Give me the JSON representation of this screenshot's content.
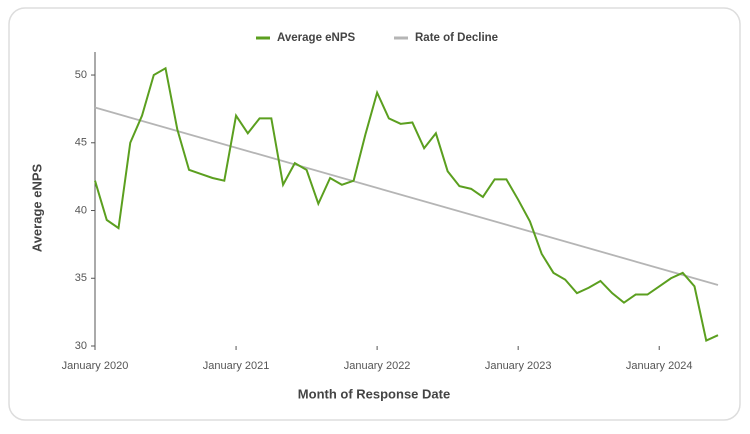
{
  "chart_data": {
    "type": "line",
    "xlabel": "Month of Response Date",
    "ylabel": "Average eNPS",
    "legend": "top",
    "ylim": [
      30,
      51.7
    ],
    "yticks": [
      30,
      35,
      40,
      45,
      50
    ],
    "xlim": [
      "2020-01",
      "2024-06"
    ],
    "xticks": [
      {
        "value": "2020-01",
        "label": "January 2020"
      },
      {
        "value": "2021-01",
        "label": "January 2021"
      },
      {
        "value": "2022-01",
        "label": "January 2022"
      },
      {
        "value": "2023-01",
        "label": "January 2023"
      },
      {
        "value": "2024-01",
        "label": "January 2024"
      }
    ],
    "series": [
      {
        "name": "Average eNPS",
        "color": "#5b9f1f",
        "x": [
          "2020-01",
          "2020-02",
          "2020-03",
          "2020-04",
          "2020-05",
          "2020-06",
          "2020-07",
          "2020-08",
          "2020-09",
          "2020-10",
          "2020-11",
          "2020-12",
          "2021-01",
          "2021-02",
          "2021-03",
          "2021-04",
          "2021-05",
          "2021-06",
          "2021-07",
          "2021-08",
          "2021-09",
          "2021-10",
          "2021-11",
          "2021-12",
          "2022-01",
          "2022-02",
          "2022-03",
          "2022-04",
          "2022-05",
          "2022-06",
          "2022-07",
          "2022-08",
          "2022-09",
          "2022-10",
          "2022-11",
          "2022-12",
          "2023-01",
          "2023-02",
          "2023-03",
          "2023-04",
          "2023-05",
          "2023-06",
          "2023-07",
          "2023-08",
          "2023-09",
          "2023-10",
          "2023-11",
          "2023-12",
          "2024-01",
          "2024-02",
          "2024-03",
          "2024-04",
          "2024-05",
          "2024-06"
        ],
        "values": [
          42.2,
          39.3,
          38.7,
          45,
          47,
          50,
          50.5,
          46,
          43,
          42.7,
          42.4,
          42.2,
          47,
          45.7,
          46.8,
          46.8,
          41.9,
          43.5,
          43,
          40.5,
          42.4,
          41.9,
          42.2,
          45.6,
          48.7,
          46.8,
          46.4,
          46.5,
          44.6,
          45.7,
          42.9,
          41.8,
          41.6,
          41,
          42.3,
          42.3,
          40.8,
          39.2,
          36.8,
          35.4,
          34.9,
          33.9,
          34.3,
          34.8,
          33.9,
          33.2,
          33.8,
          33.8,
          34.4,
          35,
          35.4,
          34.4,
          30.4,
          30.8
        ]
      },
      {
        "name": "Rate of Decline",
        "color": "#b5b5b5",
        "x": [
          "2020-01",
          "2024-06"
        ],
        "values": [
          47.6,
          34.5
        ]
      }
    ]
  }
}
